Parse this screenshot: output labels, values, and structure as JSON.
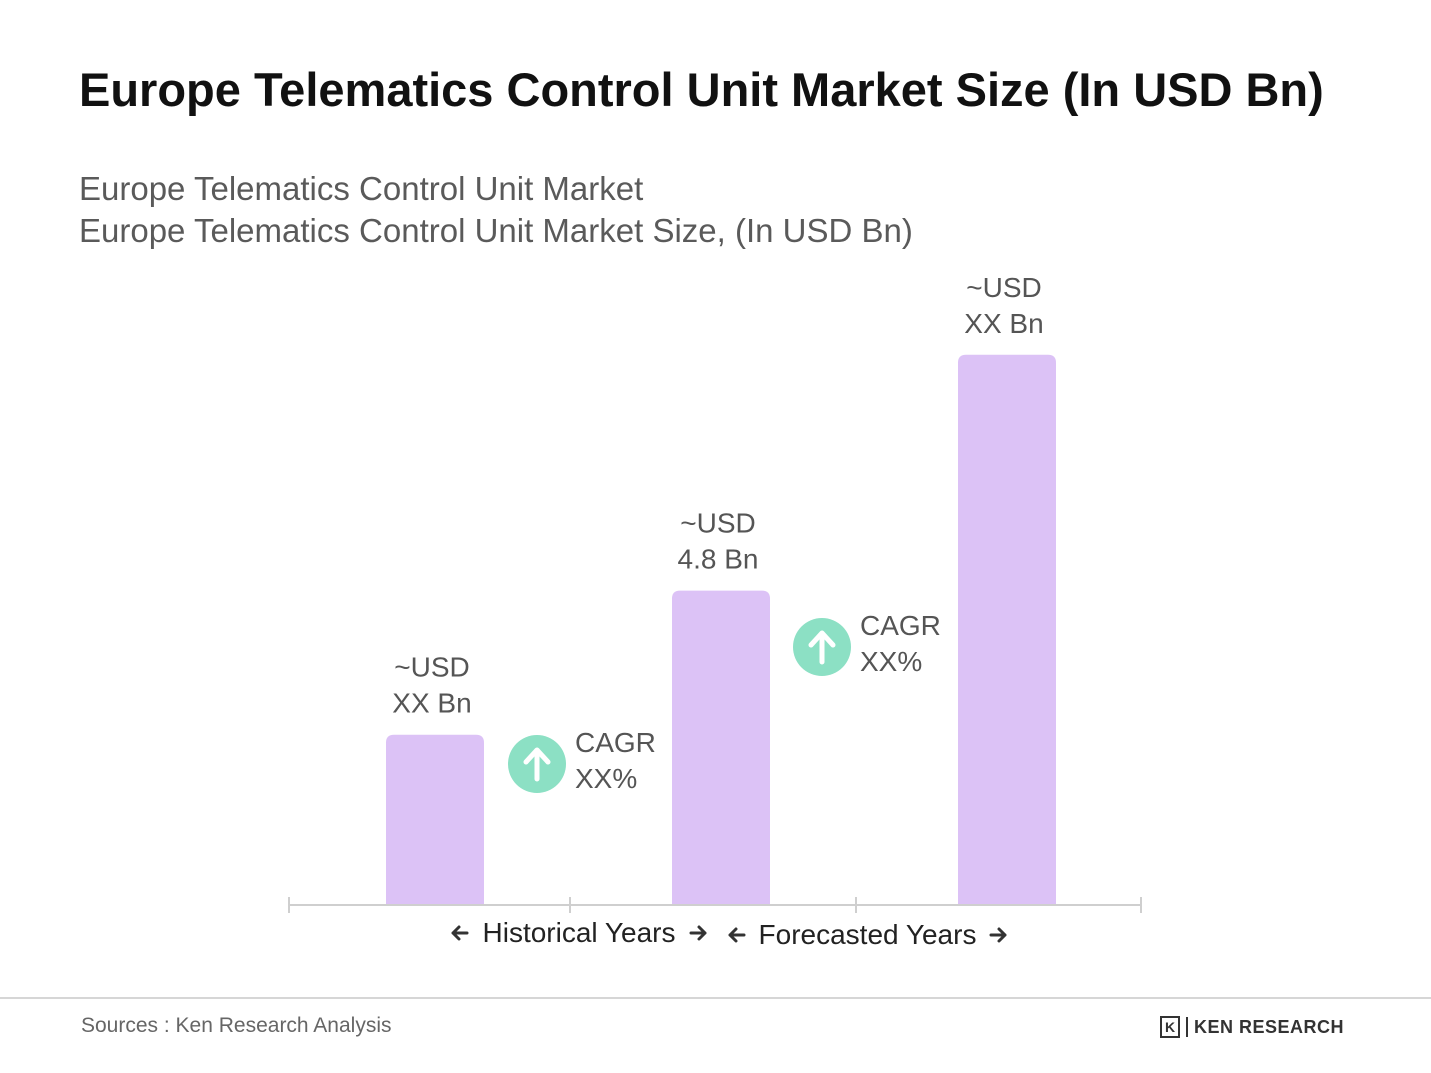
{
  "chart_data": {
    "type": "bar",
    "title": "Europe Telematics Control Unit Market Size (In USD Bn)",
    "subtitle": [
      "Europe Telematics Control Unit Market",
      "Europe Telematics Control Unit Market Size, (In USD Bn)"
    ],
    "categories": [
      "",
      "",
      ""
    ],
    "values": [
      2.6,
      4.8,
      8.4
    ],
    "bar_labels": [
      [
        "~USD",
        "XX Bn"
      ],
      [
        "~USD",
        "4.8 Bn"
      ],
      [
        "~USD",
        "XX Bn"
      ]
    ],
    "bar_color": "#dcc2f6",
    "ylim": [
      0,
      10
    ],
    "grid": false,
    "annotations": [
      {
        "between": [
          0,
          1
        ],
        "line1": "CAGR",
        "line2": "XX%",
        "icon": "arrow-up-icon"
      },
      {
        "between": [
          1,
          2
        ],
        "line1": "CAGR",
        "line2": "XX%",
        "icon": "arrow-up-icon"
      }
    ],
    "periods": [
      {
        "label": "Historical Years"
      },
      {
        "label": "Forecasted Years"
      }
    ],
    "accent_color": "#8ce0c4"
  },
  "footer": {
    "source": "Sources : Ken Research Analysis",
    "brand_mark": "K",
    "brand": "KEN RESEARCH"
  }
}
